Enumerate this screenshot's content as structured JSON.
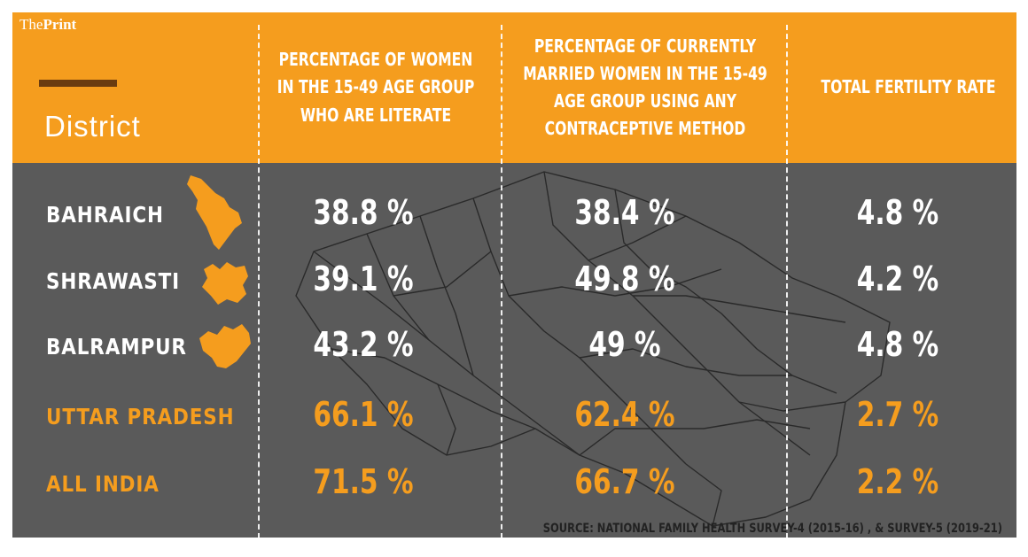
{
  "brand": {
    "prefix": "The",
    "name": "Print"
  },
  "header": {
    "row_header": "District",
    "columns": [
      "PERCENTAGE OF WOMEN IN THE 15-49 AGE GROUP WHO ARE LITERATE",
      "PERCENTAGE OF CURRENTLY MARRIED WOMEN IN THE 15-49 AGE GROUP USING ANY CONTRACEPTIVE METHOD",
      "TOTAL FERTILITY RATE"
    ]
  },
  "rows": [
    {
      "label": "BAHRAICH",
      "cells": [
        "38.8 %",
        "38.4 %",
        "4.8 %"
      ],
      "highlight": false,
      "icon": "bahraich-map-icon"
    },
    {
      "label": "SHRAWASTI",
      "cells": [
        "39.1 %",
        "49.8 %",
        "4.2 %"
      ],
      "highlight": false,
      "icon": "shrawasti-map-icon"
    },
    {
      "label": "BALRAMPUR",
      "cells": [
        "43.2 %",
        "49 %",
        "4.8 %"
      ],
      "highlight": false,
      "icon": "balrampur-map-icon"
    },
    {
      "label": "UTTAR PRADESH",
      "cells": [
        "66.1 %",
        "62.4 %",
        "2.7 %"
      ],
      "highlight": true
    },
    {
      "label": "ALL INDIA",
      "cells": [
        "71.5 %",
        "66.7 %",
        "2.2 %"
      ],
      "highlight": true
    }
  ],
  "chart_data": {
    "type": "table",
    "row_header": "District",
    "columns": [
      "PERCENTAGE OF WOMEN IN THE 15-49 AGE GROUP WHO ARE LITERATE",
      "PERCENTAGE OF CURRENTLY MARRIED WOMEN IN THE 15-49 AGE GROUP USING ANY CONTRACEPTIVE METHOD",
      "TOTAL FERTILITY RATE"
    ],
    "rows": [
      {
        "name": "BAHRAICH",
        "values": [
          38.8,
          38.4,
          4.8
        ]
      },
      {
        "name": "SHRAWASTI",
        "values": [
          39.1,
          49.8,
          4.2
        ]
      },
      {
        "name": "BALRAMPUR",
        "values": [
          43.2,
          49,
          4.8
        ]
      },
      {
        "name": "UTTAR PRADESH",
        "values": [
          66.1,
          62.4,
          2.7
        ]
      },
      {
        "name": "ALL INDIA",
        "values": [
          71.5,
          66.7,
          2.2
        ]
      }
    ]
  },
  "source": "SOURCE: NATIONAL FAMILY HEALTH SURVEY-4 (2015-16) , & SURVEY-5 (2019-21)",
  "colors": {
    "accent": "#f59d1e",
    "background": "#5a5a5a",
    "text": "#ffffff",
    "header_bar": "#6a3c10"
  }
}
